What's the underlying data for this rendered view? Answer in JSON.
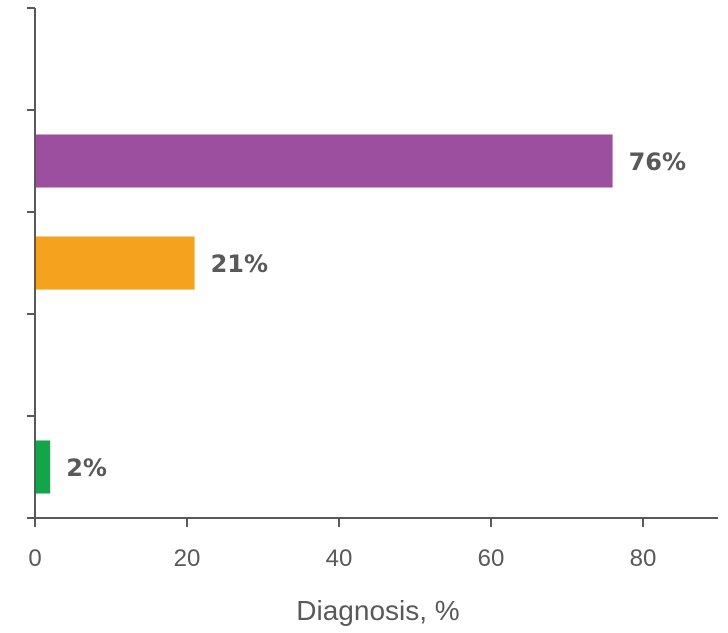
{
  "chart_data": {
    "type": "bar",
    "orientation": "horizontal",
    "title": "",
    "xlabel": "Diagnosis, %",
    "ylabel": "",
    "xlim": [
      0,
      90
    ],
    "xticks": [
      0,
      20,
      40,
      60,
      80
    ],
    "xtick_labels": [
      "0",
      "20",
      "40",
      "60",
      "80"
    ],
    "category_slots": 5,
    "grid": false,
    "legend": "none",
    "bars": [
      {
        "slot": 1,
        "value": 76,
        "label": "76%",
        "color": "#9B4F9E"
      },
      {
        "slot": 2,
        "value": 21,
        "label": "21%",
        "color": "#F5A21E"
      },
      {
        "slot": 4,
        "value": 2,
        "label": "2%",
        "color": "#13A54A"
      }
    ]
  }
}
